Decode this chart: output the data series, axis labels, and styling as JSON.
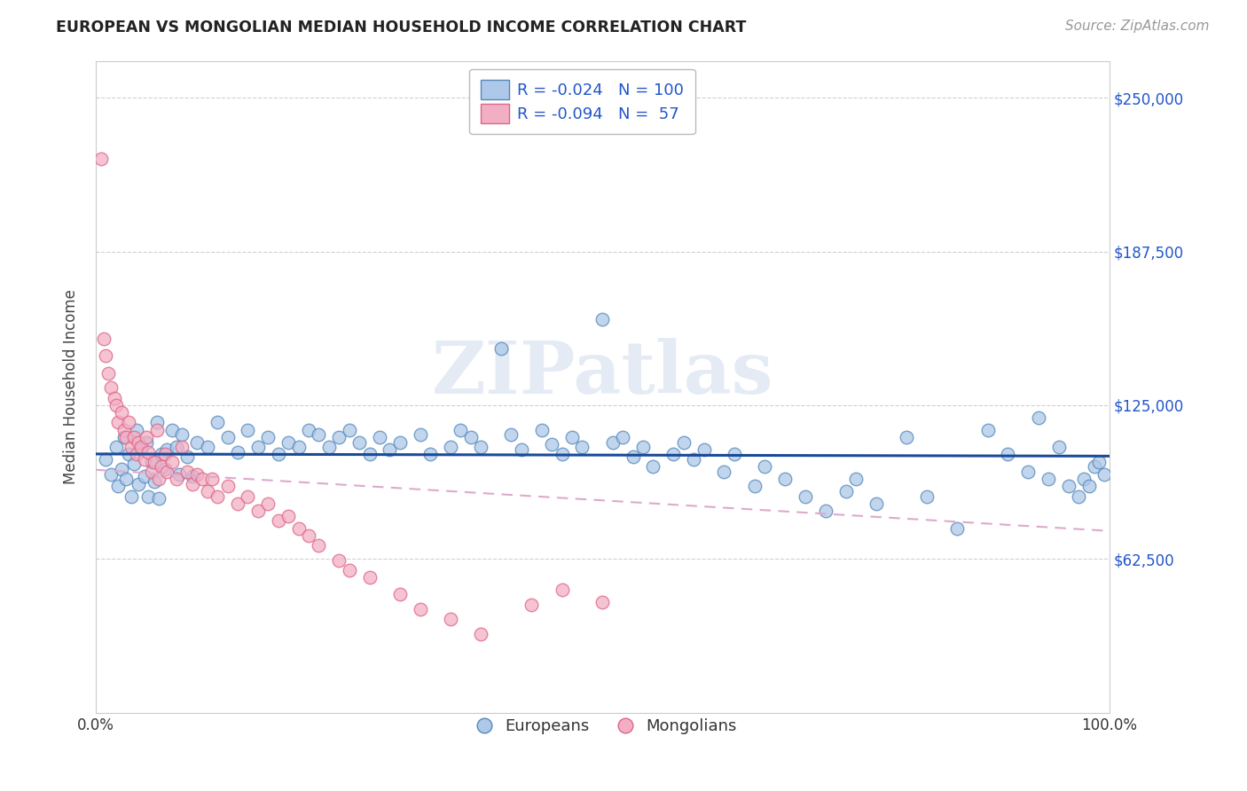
{
  "title": "EUROPEAN VS MONGOLIAN MEDIAN HOUSEHOLD INCOME CORRELATION CHART",
  "source": "Source: ZipAtlas.com",
  "xlabel": "",
  "ylabel": "Median Household Income",
  "xlim": [
    0.0,
    1.0
  ],
  "ylim": [
    0,
    265000
  ],
  "yticks": [
    0,
    62500,
    125000,
    187500,
    250000
  ],
  "ytick_labels": [
    "",
    "$62,500",
    "$125,000",
    "$187,500",
    "$250,000"
  ],
  "xtick_labels": [
    "0.0%",
    "100.0%"
  ],
  "background_color": "#ffffff",
  "grid_color": "#d0d0d0",
  "europeans_color": "#adc8e8",
  "mongolians_color": "#f2afc4",
  "europeans_edge": "#5588bb",
  "mongolians_edge": "#dd6688",
  "trend_european_color": "#1a4a99",
  "trend_mongolian_color": "#ddaacc",
  "european_r": -0.024,
  "european_n": 100,
  "mongolian_r": -0.094,
  "mongolian_n": 57,
  "watermark": "ZIPatlas",
  "europeans_x": [
    0.01,
    0.015,
    0.02,
    0.022,
    0.025,
    0.028,
    0.03,
    0.032,
    0.035,
    0.038,
    0.04,
    0.042,
    0.045,
    0.048,
    0.05,
    0.052,
    0.055,
    0.058,
    0.06,
    0.062,
    0.065,
    0.068,
    0.07,
    0.075,
    0.08,
    0.082,
    0.085,
    0.09,
    0.095,
    0.1,
    0.11,
    0.12,
    0.13,
    0.14,
    0.15,
    0.16,
    0.17,
    0.18,
    0.19,
    0.2,
    0.21,
    0.22,
    0.23,
    0.24,
    0.25,
    0.26,
    0.27,
    0.28,
    0.29,
    0.3,
    0.32,
    0.33,
    0.35,
    0.36,
    0.37,
    0.38,
    0.4,
    0.41,
    0.42,
    0.44,
    0.45,
    0.46,
    0.47,
    0.48,
    0.5,
    0.51,
    0.52,
    0.53,
    0.54,
    0.55,
    0.57,
    0.58,
    0.59,
    0.6,
    0.62,
    0.63,
    0.65,
    0.66,
    0.68,
    0.7,
    0.72,
    0.74,
    0.75,
    0.77,
    0.8,
    0.82,
    0.85,
    0.88,
    0.9,
    0.92,
    0.93,
    0.94,
    0.95,
    0.96,
    0.97,
    0.975,
    0.98,
    0.985,
    0.99,
    0.995
  ],
  "europeans_y": [
    103000,
    97000,
    108000,
    92000,
    99000,
    112000,
    95000,
    105000,
    88000,
    101000,
    115000,
    93000,
    107000,
    96000,
    110000,
    88000,
    102000,
    94000,
    118000,
    87000,
    105000,
    99000,
    107000,
    115000,
    108000,
    97000,
    113000,
    104000,
    96000,
    110000,
    108000,
    118000,
    112000,
    106000,
    115000,
    108000,
    112000,
    105000,
    110000,
    108000,
    115000,
    113000,
    108000,
    112000,
    115000,
    110000,
    105000,
    112000,
    107000,
    110000,
    113000,
    105000,
    108000,
    115000,
    112000,
    108000,
    148000,
    113000,
    107000,
    115000,
    109000,
    105000,
    112000,
    108000,
    160000,
    110000,
    112000,
    104000,
    108000,
    100000,
    105000,
    110000,
    103000,
    107000,
    98000,
    105000,
    92000,
    100000,
    95000,
    88000,
    82000,
    90000,
    95000,
    85000,
    112000,
    88000,
    75000,
    115000,
    105000,
    98000,
    120000,
    95000,
    108000,
    92000,
    88000,
    95000,
    92000,
    100000,
    102000,
    97000
  ],
  "mongolians_x": [
    0.005,
    0.008,
    0.01,
    0.012,
    0.015,
    0.018,
    0.02,
    0.022,
    0.025,
    0.028,
    0.03,
    0.032,
    0.035,
    0.038,
    0.04,
    0.042,
    0.045,
    0.048,
    0.05,
    0.052,
    0.055,
    0.058,
    0.06,
    0.062,
    0.065,
    0.068,
    0.07,
    0.075,
    0.08,
    0.085,
    0.09,
    0.095,
    0.1,
    0.105,
    0.11,
    0.115,
    0.12,
    0.13,
    0.14,
    0.15,
    0.16,
    0.17,
    0.18,
    0.19,
    0.2,
    0.21,
    0.22,
    0.24,
    0.25,
    0.27,
    0.3,
    0.32,
    0.35,
    0.38,
    0.43,
    0.46,
    0.5
  ],
  "mongolians_y": [
    225000,
    152000,
    145000,
    138000,
    132000,
    128000,
    125000,
    118000,
    122000,
    115000,
    112000,
    118000,
    108000,
    112000,
    105000,
    110000,
    108000,
    103000,
    112000,
    106000,
    98000,
    102000,
    115000,
    95000,
    100000,
    105000,
    98000,
    102000,
    95000,
    108000,
    98000,
    93000,
    97000,
    95000,
    90000,
    95000,
    88000,
    92000,
    85000,
    88000,
    82000,
    85000,
    78000,
    80000,
    75000,
    72000,
    68000,
    62000,
    58000,
    55000,
    48000,
    42000,
    38000,
    32000,
    44000,
    50000,
    45000
  ]
}
